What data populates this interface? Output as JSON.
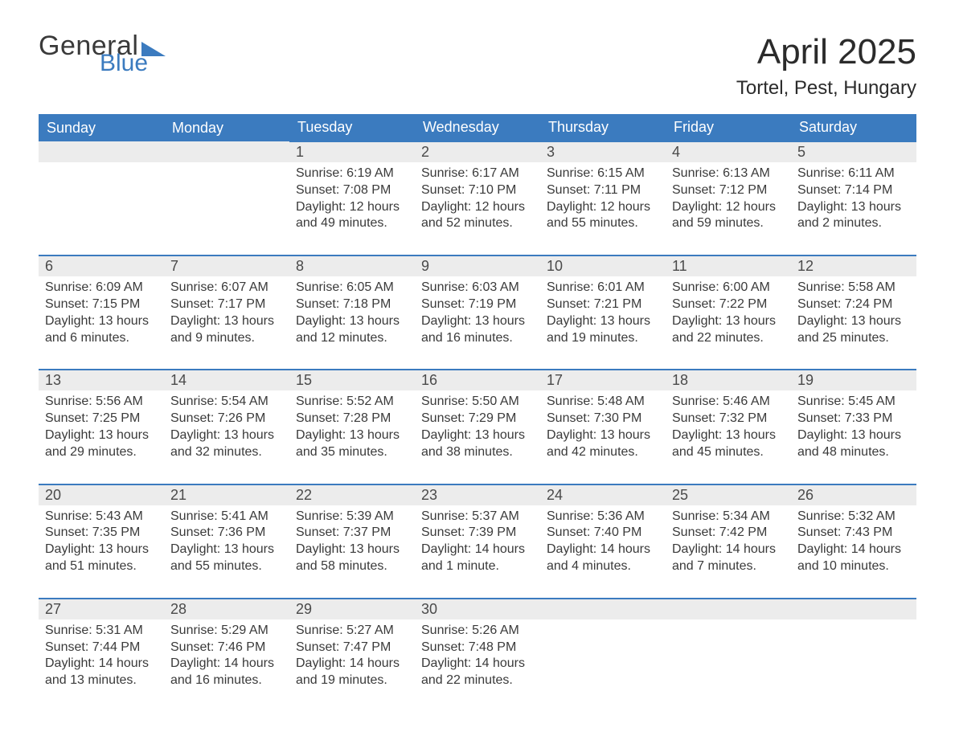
{
  "logo": {
    "general": "General",
    "blue": "Blue"
  },
  "colors": {
    "brand_blue": "#3b7bbf",
    "header_bg": "#3b7bbf",
    "header_text": "#ffffff",
    "daynum_bg": "#ececec",
    "daynum_border": "#3b7bbf",
    "body_text": "#3a3a3a",
    "background": "#ffffff"
  },
  "title": {
    "month": "April 2025",
    "location": "Tortel, Pest, Hungary"
  },
  "weekdays": [
    "Sunday",
    "Monday",
    "Tuesday",
    "Wednesday",
    "Thursday",
    "Friday",
    "Saturday"
  ],
  "weeks": [
    [
      null,
      null,
      {
        "d": "1",
        "sr": "Sunrise: 6:19 AM",
        "ss": "Sunset: 7:08 PM",
        "dl1": "Daylight: 12 hours",
        "dl2": "and 49 minutes."
      },
      {
        "d": "2",
        "sr": "Sunrise: 6:17 AM",
        "ss": "Sunset: 7:10 PM",
        "dl1": "Daylight: 12 hours",
        "dl2": "and 52 minutes."
      },
      {
        "d": "3",
        "sr": "Sunrise: 6:15 AM",
        "ss": "Sunset: 7:11 PM",
        "dl1": "Daylight: 12 hours",
        "dl2": "and 55 minutes."
      },
      {
        "d": "4",
        "sr": "Sunrise: 6:13 AM",
        "ss": "Sunset: 7:12 PM",
        "dl1": "Daylight: 12 hours",
        "dl2": "and 59 minutes."
      },
      {
        "d": "5",
        "sr": "Sunrise: 6:11 AM",
        "ss": "Sunset: 7:14 PM",
        "dl1": "Daylight: 13 hours",
        "dl2": "and 2 minutes."
      }
    ],
    [
      {
        "d": "6",
        "sr": "Sunrise: 6:09 AM",
        "ss": "Sunset: 7:15 PM",
        "dl1": "Daylight: 13 hours",
        "dl2": "and 6 minutes."
      },
      {
        "d": "7",
        "sr": "Sunrise: 6:07 AM",
        "ss": "Sunset: 7:17 PM",
        "dl1": "Daylight: 13 hours",
        "dl2": "and 9 minutes."
      },
      {
        "d": "8",
        "sr": "Sunrise: 6:05 AM",
        "ss": "Sunset: 7:18 PM",
        "dl1": "Daylight: 13 hours",
        "dl2": "and 12 minutes."
      },
      {
        "d": "9",
        "sr": "Sunrise: 6:03 AM",
        "ss": "Sunset: 7:19 PM",
        "dl1": "Daylight: 13 hours",
        "dl2": "and 16 minutes."
      },
      {
        "d": "10",
        "sr": "Sunrise: 6:01 AM",
        "ss": "Sunset: 7:21 PM",
        "dl1": "Daylight: 13 hours",
        "dl2": "and 19 minutes."
      },
      {
        "d": "11",
        "sr": "Sunrise: 6:00 AM",
        "ss": "Sunset: 7:22 PM",
        "dl1": "Daylight: 13 hours",
        "dl2": "and 22 minutes."
      },
      {
        "d": "12",
        "sr": "Sunrise: 5:58 AM",
        "ss": "Sunset: 7:24 PM",
        "dl1": "Daylight: 13 hours",
        "dl2": "and 25 minutes."
      }
    ],
    [
      {
        "d": "13",
        "sr": "Sunrise: 5:56 AM",
        "ss": "Sunset: 7:25 PM",
        "dl1": "Daylight: 13 hours",
        "dl2": "and 29 minutes."
      },
      {
        "d": "14",
        "sr": "Sunrise: 5:54 AM",
        "ss": "Sunset: 7:26 PM",
        "dl1": "Daylight: 13 hours",
        "dl2": "and 32 minutes."
      },
      {
        "d": "15",
        "sr": "Sunrise: 5:52 AM",
        "ss": "Sunset: 7:28 PM",
        "dl1": "Daylight: 13 hours",
        "dl2": "and 35 minutes."
      },
      {
        "d": "16",
        "sr": "Sunrise: 5:50 AM",
        "ss": "Sunset: 7:29 PM",
        "dl1": "Daylight: 13 hours",
        "dl2": "and 38 minutes."
      },
      {
        "d": "17",
        "sr": "Sunrise: 5:48 AM",
        "ss": "Sunset: 7:30 PM",
        "dl1": "Daylight: 13 hours",
        "dl2": "and 42 minutes."
      },
      {
        "d": "18",
        "sr": "Sunrise: 5:46 AM",
        "ss": "Sunset: 7:32 PM",
        "dl1": "Daylight: 13 hours",
        "dl2": "and 45 minutes."
      },
      {
        "d": "19",
        "sr": "Sunrise: 5:45 AM",
        "ss": "Sunset: 7:33 PM",
        "dl1": "Daylight: 13 hours",
        "dl2": "and 48 minutes."
      }
    ],
    [
      {
        "d": "20",
        "sr": "Sunrise: 5:43 AM",
        "ss": "Sunset: 7:35 PM",
        "dl1": "Daylight: 13 hours",
        "dl2": "and 51 minutes."
      },
      {
        "d": "21",
        "sr": "Sunrise: 5:41 AM",
        "ss": "Sunset: 7:36 PM",
        "dl1": "Daylight: 13 hours",
        "dl2": "and 55 minutes."
      },
      {
        "d": "22",
        "sr": "Sunrise: 5:39 AM",
        "ss": "Sunset: 7:37 PM",
        "dl1": "Daylight: 13 hours",
        "dl2": "and 58 minutes."
      },
      {
        "d": "23",
        "sr": "Sunrise: 5:37 AM",
        "ss": "Sunset: 7:39 PM",
        "dl1": "Daylight: 14 hours",
        "dl2": "and 1 minute."
      },
      {
        "d": "24",
        "sr": "Sunrise: 5:36 AM",
        "ss": "Sunset: 7:40 PM",
        "dl1": "Daylight: 14 hours",
        "dl2": "and 4 minutes."
      },
      {
        "d": "25",
        "sr": "Sunrise: 5:34 AM",
        "ss": "Sunset: 7:42 PM",
        "dl1": "Daylight: 14 hours",
        "dl2": "and 7 minutes."
      },
      {
        "d": "26",
        "sr": "Sunrise: 5:32 AM",
        "ss": "Sunset: 7:43 PM",
        "dl1": "Daylight: 14 hours",
        "dl2": "and 10 minutes."
      }
    ],
    [
      {
        "d": "27",
        "sr": "Sunrise: 5:31 AM",
        "ss": "Sunset: 7:44 PM",
        "dl1": "Daylight: 14 hours",
        "dl2": "and 13 minutes."
      },
      {
        "d": "28",
        "sr": "Sunrise: 5:29 AM",
        "ss": "Sunset: 7:46 PM",
        "dl1": "Daylight: 14 hours",
        "dl2": "and 16 minutes."
      },
      {
        "d": "29",
        "sr": "Sunrise: 5:27 AM",
        "ss": "Sunset: 7:47 PM",
        "dl1": "Daylight: 14 hours",
        "dl2": "and 19 minutes."
      },
      {
        "d": "30",
        "sr": "Sunrise: 5:26 AM",
        "ss": "Sunset: 7:48 PM",
        "dl1": "Daylight: 14 hours",
        "dl2": "and 22 minutes."
      },
      null,
      null,
      null
    ]
  ]
}
